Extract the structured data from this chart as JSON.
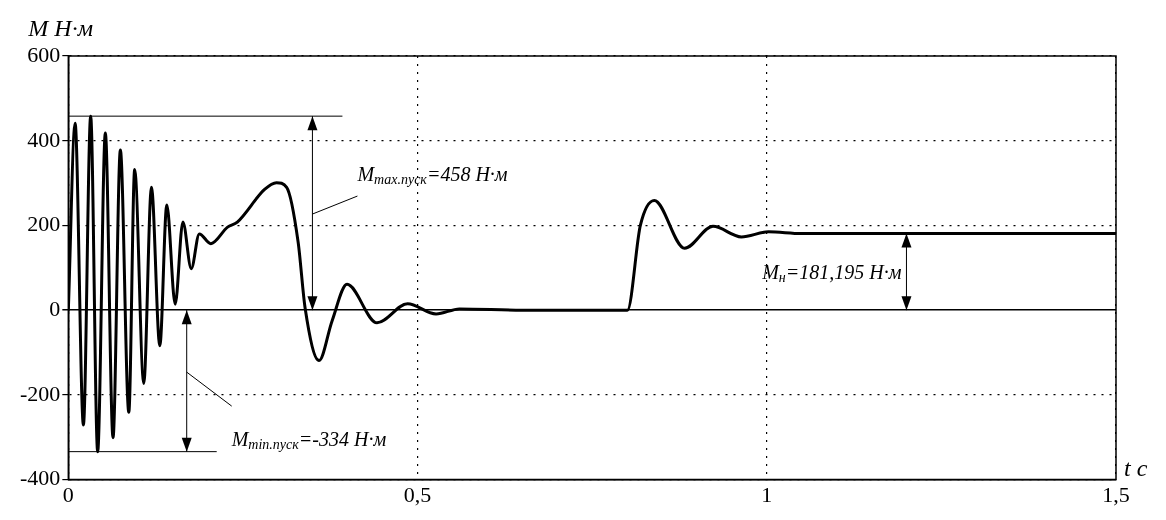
{
  "chart_data": {
    "type": "line",
    "ylabel": "M Н·м",
    "xlabel": "t с",
    "x": [
      0,
      0.0097,
      0.0216,
      0.032,
      0.042,
      0.053,
      0.064,
      0.0745,
      0.0866,
      0.095,
      0.108,
      0.119,
      0.131,
      0.141,
      0.153,
      0.164,
      0.176,
      0.1875,
      0.204,
      0.228,
      0.242,
      0.281,
      0.298,
      0.3126,
      0.329,
      0.339,
      0.359,
      0.3775,
      0.399,
      0.442,
      0.4857,
      0.5265,
      0.56,
      0.65,
      0.8005,
      0.819,
      0.839,
      0.8823,
      0.923,
      0.9636,
      1.0025,
      1.05,
      1.5
    ],
    "series": [
      {
        "color": "#000000",
        "values": [
          0,
          441,
          -271,
          458,
          -334,
          418,
          -301,
          378,
          -241,
          332,
          -173,
          290,
          -84,
          248,
          14,
          208,
          98,
          180,
          157,
          196,
          208,
          285,
          301,
          290,
          161,
          5,
          -119,
          -26,
          61,
          -30,
          15,
          -9,
          3,
          0,
          0,
          200,
          259,
          146,
          198,
          173,
          185,
          181,
          181
        ]
      }
    ],
    "xlim": [
      0,
      1.5
    ],
    "ylim": [
      -400,
      600
    ],
    "xticks": [
      0,
      {
        "value": 0.5,
        "label": "0,5"
      },
      1,
      {
        "value": 1.5,
        "label": "1,5"
      }
    ],
    "yticks": [
      -400,
      -200,
      0,
      200,
      400,
      600
    ],
    "grid": true,
    "marker": "none",
    "line_style": "solid",
    "ref_lines": [
      {
        "axis": "y",
        "value": 458,
        "label": "M$_{max.пуск}$=458 Н·м"
      },
      {
        "axis": "y",
        "value": -334,
        "label": "M$_{min.пуск}$=-334 Н·м"
      }
    ],
    "annotations": [
      {
        "text": "M$_{н}$=181,195 Н·м",
        "x": 1.2,
        "y": 181.195
      }
    ]
  }
}
